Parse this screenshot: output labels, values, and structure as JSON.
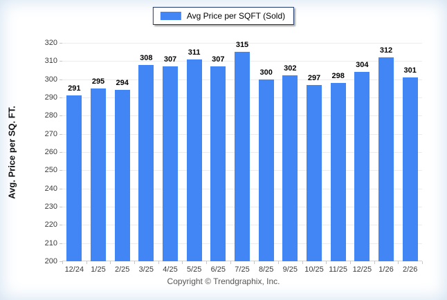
{
  "legend": {
    "label": "Avg Price per SQFT (Sold)",
    "swatch_color": "#4285F4"
  },
  "chart_data": {
    "type": "bar",
    "title": "",
    "categories": [
      "12/24",
      "1/25",
      "2/25",
      "3/25",
      "4/25",
      "5/25",
      "6/25",
      "7/25",
      "8/25",
      "9/25",
      "10/25",
      "11/25",
      "12/25",
      "1/26",
      "2/26"
    ],
    "values": [
      291,
      295,
      294,
      308,
      307,
      311,
      307,
      315,
      300,
      302,
      297,
      298,
      304,
      312,
      301
    ],
    "series_name": "Avg Price per SQFT (Sold)",
    "xlabel": "",
    "ylabel": "Avg. Price per SQ. FT.",
    "ylim": [
      200,
      320
    ],
    "ytick_step": 10,
    "grid": true,
    "data_labels": true,
    "legend_position": "top"
  },
  "footer": {
    "copyright": "Copyright © Trendgraphix, Inc."
  },
  "colors": {
    "bar": "#4285F4",
    "legend_border": "#1b3a6b",
    "grid": "#ebebeb",
    "axis": "#d0d0d0",
    "tick_mark": "#c6c6c6",
    "tick_text": "#3a3a3a",
    "value_label": "#000000",
    "ylabel_text": "#111111",
    "footer_text": "#555555",
    "edge_tint": "#cfdff0"
  }
}
